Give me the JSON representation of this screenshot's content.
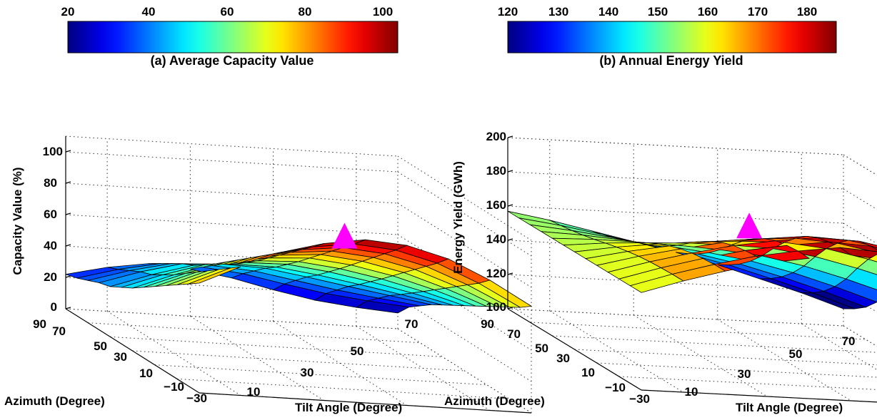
{
  "chart_data": [
    {
      "type": "surface3d",
      "title": "(a) Average Capacity Value",
      "xlabel": "Tilt Angle (Degree)",
      "ylabel": "Azimuth (Degree)",
      "zlabel": "Capacity Value (%)",
      "xlim": [
        0,
        80
      ],
      "ylim": [
        -30,
        90
      ],
      "zlim": [
        0,
        110
      ],
      "x_ticks": [
        "10",
        "30",
        "50",
        "70"
      ],
      "y_ticks": [
        "90",
        "70",
        "50",
        "30",
        "10",
        "−10",
        "−30"
      ],
      "z_ticks": [
        "0",
        "20",
        "40",
        "60",
        "80",
        "100"
      ],
      "colorbar": {
        "min": 10,
        "max": 105,
        "ticks": [
          "20",
          "40",
          "60",
          "80",
          "100"
        ]
      },
      "tilt": [
        0,
        10,
        20,
        30,
        40,
        50,
        60,
        70,
        80
      ],
      "azimuth": [
        -30,
        -20,
        -10,
        0,
        10,
        20,
        30,
        40,
        50,
        60,
        70,
        80,
        90
      ],
      "surface": {
        "edge_tilt0": [
          70,
          65,
          60,
          55,
          50,
          45,
          40,
          36,
          32,
          30,
          27,
          24,
          22
        ],
        "edge_az_minus30": [
          70,
          82,
          93,
          100,
          104,
          102,
          95,
          83,
          68
        ],
        "edge_tilt80": [
          5,
          6,
          8,
          10,
          12,
          14,
          16,
          18,
          20,
          22,
          23,
          24,
          22
        ],
        "edge_az90": [
          22,
          28,
          32,
          30,
          26,
          20,
          15,
          12,
          10
        ]
      },
      "marker": {
        "tilt": 35,
        "azimuth": -30,
        "value": 104,
        "color": "#ff00ff",
        "shape": "triangle"
      }
    },
    {
      "type": "surface3d",
      "title": "(b) Annual Energy Yield",
      "xlabel": "Tilt Angle (Degree)",
      "ylabel": "Azimuth (Degree)",
      "zlabel": "Energy Yield (GWh)",
      "xlim": [
        0,
        80
      ],
      "ylim": [
        -30,
        90
      ],
      "zlim": [
        100,
        200
      ],
      "x_ticks": [
        "10",
        "30",
        "50",
        "70"
      ],
      "y_ticks": [
        "90",
        "70",
        "50",
        "30",
        "10",
        "−10",
        "−30"
      ],
      "z_ticks": [
        "100",
        "120",
        "140",
        "160",
        "180",
        "200"
      ],
      "colorbar": {
        "min": 120,
        "max": 188,
        "ticks": [
          "120",
          "130",
          "140",
          "150",
          "160",
          "170",
          "180"
        ]
      },
      "tilt": [
        0,
        10,
        20,
        30,
        40,
        50,
        60,
        70,
        80
      ],
      "azimuth": [
        -30,
        -20,
        -10,
        0,
        10,
        20,
        30,
        40,
        50,
        60,
        70,
        80,
        90
      ],
      "surface": {
        "edge_tilt0": [
          157,
          157,
          157,
          157,
          157,
          157,
          157,
          157,
          157,
          157,
          157,
          157,
          157
        ],
        "edge_az_minus30": [
          157,
          165,
          172,
          178,
          182,
          185,
          183,
          176,
          168
        ],
        "edge_tilt80": [
          145,
          150,
          153,
          155,
          154,
          150,
          144,
          136,
          127,
          120,
          115,
          112,
          110
        ],
        "edge_az90": [
          157,
          153,
          148,
          143,
          138,
          132,
          125,
          118,
          110
        ]
      },
      "marker": {
        "tilt": 35,
        "azimuth": 5,
        "value": 185,
        "color": "#ff00ff",
        "shape": "triangle"
      }
    }
  ]
}
